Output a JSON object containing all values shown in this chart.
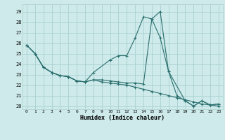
{
  "xlabel": "Humidex (Indice chaleur)",
  "background_color": "#ceeaea",
  "grid_color": "#aad0d0",
  "line_color": "#2a6e6e",
  "x_ticks": [
    0,
    1,
    2,
    3,
    4,
    5,
    6,
    7,
    8,
    9,
    10,
    11,
    12,
    13,
    14,
    15,
    16,
    17,
    18,
    19,
    20,
    21,
    22,
    23
  ],
  "y_ticks": [
    20,
    21,
    22,
    23,
    24,
    25,
    26,
    27,
    28,
    29
  ],
  "ylim": [
    19.7,
    29.7
  ],
  "xlim": [
    -0.5,
    23.5
  ],
  "series1_x": [
    0,
    1,
    2,
    3,
    4,
    5,
    6,
    7,
    8,
    10,
    11,
    12,
    13,
    14,
    15,
    16,
    17,
    19,
    20,
    21,
    22,
    23
  ],
  "series1_y": [
    25.8,
    25.0,
    23.7,
    23.2,
    22.9,
    22.8,
    22.4,
    22.3,
    23.2,
    24.4,
    24.8,
    24.8,
    26.5,
    28.5,
    28.3,
    26.5,
    23.3,
    20.5,
    20.0,
    20.5,
    20.1,
    20.2
  ],
  "series2_x": [
    0,
    1,
    2,
    3,
    4,
    5,
    6,
    7,
    8,
    9,
    10,
    11,
    12,
    13,
    14,
    15,
    16,
    17,
    18,
    19,
    20,
    21,
    22,
    23
  ],
  "series2_y": [
    25.8,
    25.0,
    23.7,
    23.2,
    22.9,
    22.8,
    22.4,
    22.3,
    22.5,
    22.5,
    22.4,
    22.3,
    22.2,
    22.2,
    22.1,
    28.3,
    29.0,
    23.3,
    21.0,
    20.5,
    20.0,
    20.5,
    20.1,
    20.2
  ],
  "series3_x": [
    0,
    1,
    2,
    3,
    4,
    5,
    6,
    7,
    8,
    9,
    10,
    11,
    12,
    13,
    14,
    15,
    16,
    17,
    18,
    19,
    20,
    21,
    22,
    23
  ],
  "series3_y": [
    25.8,
    25.0,
    23.7,
    23.2,
    22.9,
    22.8,
    22.4,
    22.3,
    22.5,
    22.3,
    22.2,
    22.1,
    22.0,
    21.8,
    21.6,
    21.4,
    21.2,
    21.0,
    20.8,
    20.6,
    20.4,
    20.2,
    20.1,
    20.0
  ]
}
